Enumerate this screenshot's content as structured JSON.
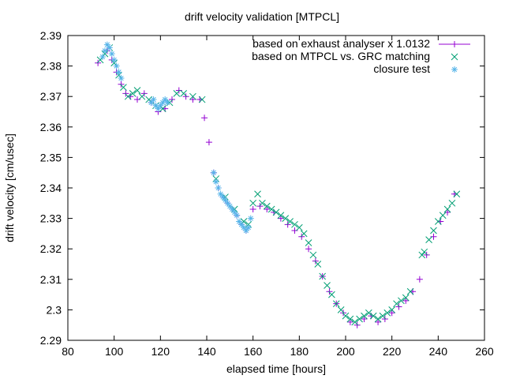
{
  "chart_data": {
    "type": "scatter",
    "title": "drift velocity validation [MTPCL]",
    "xlabel": "elapsed time [hours]",
    "ylabel": "drift velocity [cm/usec]",
    "xlim": [
      80,
      260
    ],
    "ylim": [
      2.29,
      2.39
    ],
    "xticks": [
      80,
      100,
      120,
      140,
      160,
      180,
      200,
      220,
      240,
      260
    ],
    "yticks": [
      2.29,
      2.3,
      2.31,
      2.32,
      2.33,
      2.34,
      2.35,
      2.36,
      2.37,
      2.38,
      2.39
    ],
    "grid": false,
    "legend_position": "top-right",
    "series": [
      {
        "name": "based on exhaust analyser x 1.0132",
        "color": "#9400d3",
        "marker": "plus",
        "line_in_legend": true,
        "x": [
          93,
          95,
          97,
          99,
          101,
          103,
          105,
          107,
          110,
          113,
          116,
          119,
          122,
          125,
          128,
          131,
          134,
          137,
          139,
          141,
          143,
          145,
          147,
          149,
          151,
          153,
          155,
          157,
          160,
          163,
          166,
          169,
          172,
          175,
          178,
          181,
          184,
          187,
          190,
          193,
          196,
          199,
          202,
          205,
          208,
          211,
          214,
          217,
          220,
          223,
          226,
          229,
          232,
          235,
          238,
          241,
          244,
          247
        ],
        "y": [
          2.381,
          2.383,
          2.385,
          2.382,
          2.378,
          2.374,
          2.371,
          2.37,
          2.369,
          2.371,
          2.368,
          2.365,
          2.366,
          2.369,
          2.372,
          2.37,
          2.369,
          2.369,
          2.363,
          2.355,
          2.345,
          2.34,
          2.337,
          2.335,
          2.333,
          2.331,
          2.328,
          2.326,
          2.333,
          2.334,
          2.333,
          2.332,
          2.33,
          2.328,
          2.326,
          2.324,
          2.32,
          2.316,
          2.311,
          2.306,
          2.302,
          2.299,
          2.296,
          2.295,
          2.297,
          2.298,
          2.296,
          2.297,
          2.299,
          2.301,
          2.303,
          2.306,
          2.31,
          2.318,
          2.324,
          2.329,
          2.332,
          2.338
        ]
      },
      {
        "name": "based on MTPCL vs. GRC matching",
        "color": "#009e73",
        "marker": "cross",
        "x": [
          94,
          96,
          98,
          100,
          102,
          104,
          106,
          108,
          110,
          112,
          115,
          118,
          121,
          124,
          127,
          130,
          134,
          138,
          144,
          148,
          152,
          156,
          158,
          160,
          162,
          164,
          166,
          168,
          170,
          172,
          174,
          176,
          178,
          180,
          182,
          184,
          186,
          188,
          190,
          192,
          194,
          196,
          198,
          200,
          202,
          204,
          206,
          208,
          210,
          212,
          214,
          216,
          218,
          220,
          222,
          224,
          226,
          228,
          233,
          234,
          236,
          238,
          240,
          242,
          244,
          246,
          248
        ],
        "y": [
          2.382,
          2.384,
          2.386,
          2.381,
          2.377,
          2.373,
          2.37,
          2.371,
          2.372,
          2.37,
          2.369,
          2.367,
          2.366,
          2.368,
          2.371,
          2.371,
          2.37,
          2.369,
          2.343,
          2.337,
          2.333,
          2.329,
          2.328,
          2.335,
          2.338,
          2.335,
          2.334,
          2.333,
          2.332,
          2.331,
          2.33,
          2.329,
          2.328,
          2.327,
          2.325,
          2.322,
          2.318,
          2.315,
          2.311,
          2.308,
          2.305,
          2.302,
          2.3,
          2.298,
          2.297,
          2.296,
          2.297,
          2.298,
          2.299,
          2.298,
          2.297,
          2.298,
          2.299,
          2.3,
          2.302,
          2.303,
          2.304,
          2.306,
          2.318,
          2.319,
          2.323,
          2.326,
          2.329,
          2.331,
          2.333,
          2.335,
          2.338
        ]
      },
      {
        "name": "closure test",
        "color": "#56b4e9",
        "marker": "star",
        "x": [
          95,
          96,
          97,
          98,
          99,
          100,
          101,
          102,
          103,
          116,
          117,
          118,
          119,
          120,
          121,
          122,
          123,
          143,
          144,
          145,
          146,
          147,
          148,
          149,
          150,
          151,
          152,
          153,
          154,
          155,
          156,
          157,
          158,
          159
        ],
        "y": [
          2.383,
          2.385,
          2.387,
          2.386,
          2.384,
          2.382,
          2.38,
          2.378,
          2.376,
          2.368,
          2.369,
          2.367,
          2.366,
          2.367,
          2.368,
          2.369,
          2.368,
          2.345,
          2.342,
          2.34,
          2.338,
          2.337,
          2.336,
          2.335,
          2.334,
          2.333,
          2.332,
          2.331,
          2.329,
          2.328,
          2.327,
          2.326,
          2.327,
          2.33
        ]
      }
    ]
  }
}
